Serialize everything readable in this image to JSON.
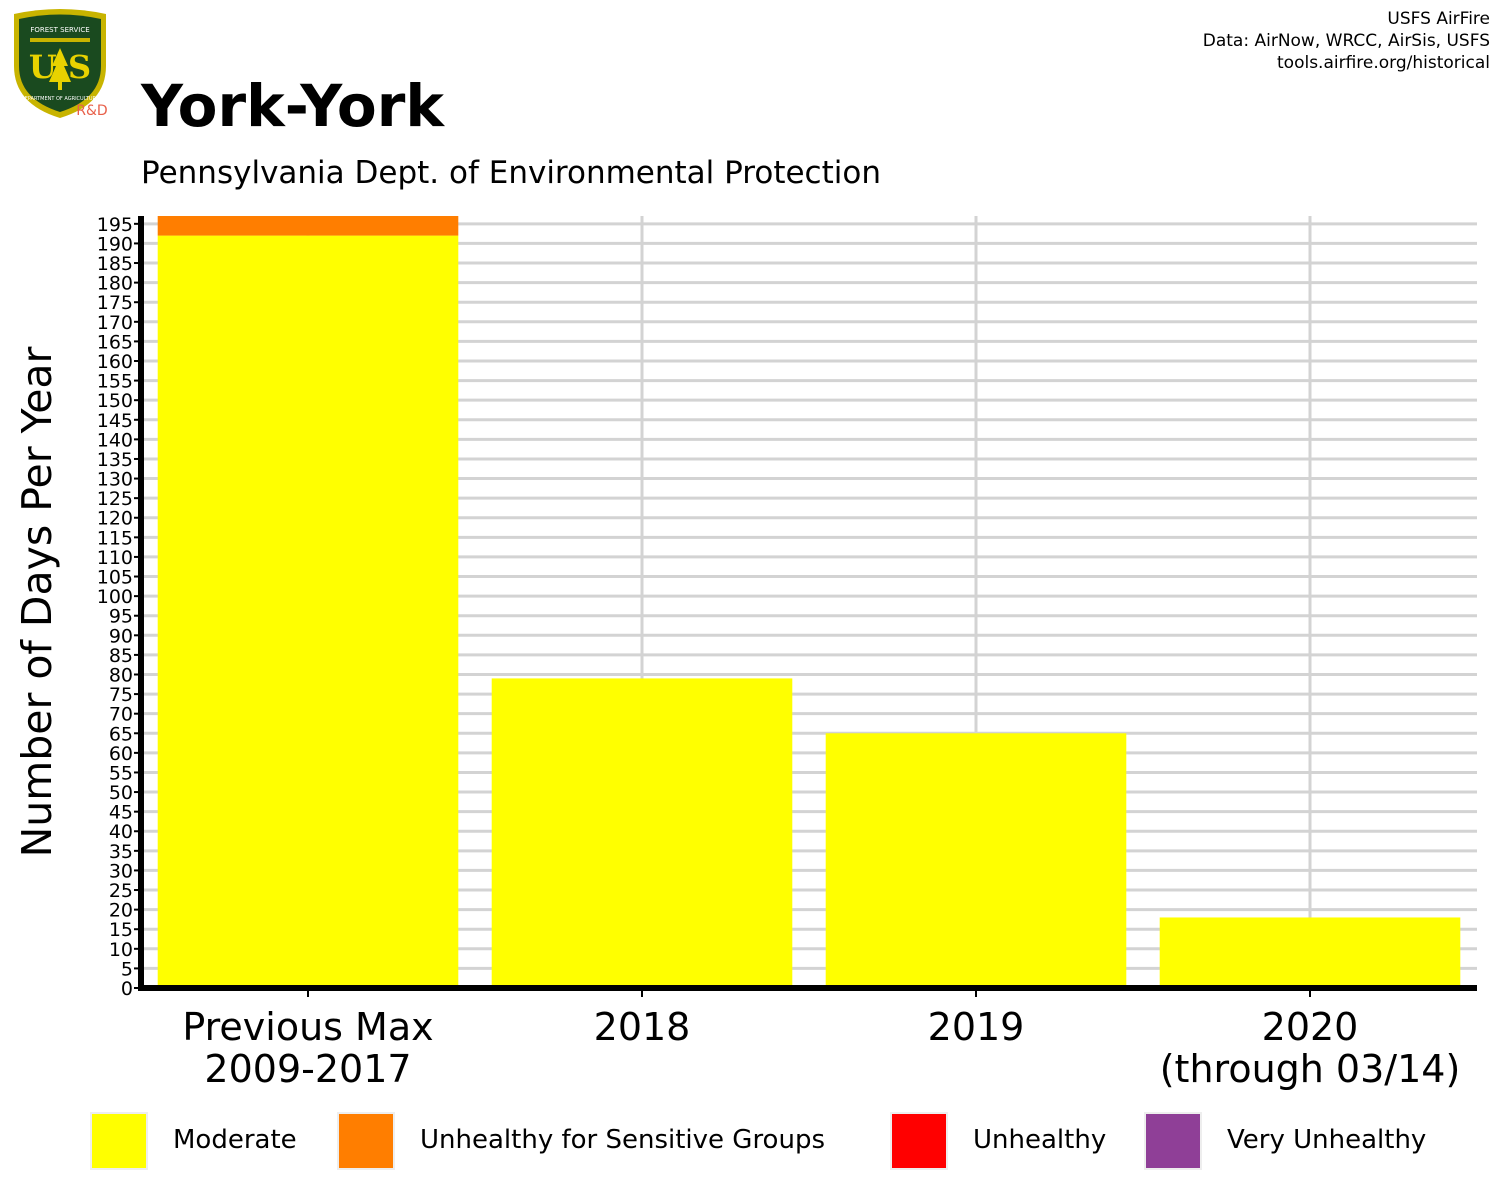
{
  "header": {
    "title": "York-York",
    "subtitle": "Pennsylvania Dept. of Environmental Protection",
    "credits": [
      "USFS AirFire",
      "Data: AirNow, WRCC, AirSis, USFS",
      "tools.airfire.org/historical"
    ],
    "logo": {
      "text_top": "FOREST SERVICE",
      "letters": "U S",
      "text_bottom": "DEPARTMENT OF AGRICULTURE",
      "badge": "R&D",
      "colors": {
        "shield": "#1a4a1f",
        "trim": "#c8b400",
        "badge": "#e8604a"
      }
    }
  },
  "chart_data": {
    "type": "bar",
    "stacked": true,
    "categories": [
      "Previous Max\n2009-2017",
      "2018",
      "2019",
      "2020\n(through 03/14)"
    ],
    "series": [
      {
        "name": "Moderate",
        "color": "#ffff00",
        "values": [
          192,
          79,
          65,
          18
        ]
      },
      {
        "name": "Unhealthy for Sensitive Groups",
        "color": "#ff7e00",
        "values": [
          5,
          0,
          0,
          0
        ]
      },
      {
        "name": "Unhealthy",
        "color": "#ff0000",
        "values": [
          0,
          0,
          0,
          0
        ]
      },
      {
        "name": "Very Unhealthy",
        "color": "#8f3f97",
        "values": [
          0,
          0,
          0,
          0
        ]
      }
    ],
    "ylabel": "Number of Days Per Year",
    "xlabel": "",
    "ylim": [
      0,
      197
    ],
    "ytick_step": 5,
    "grid": true,
    "legend_position": "bottom"
  }
}
